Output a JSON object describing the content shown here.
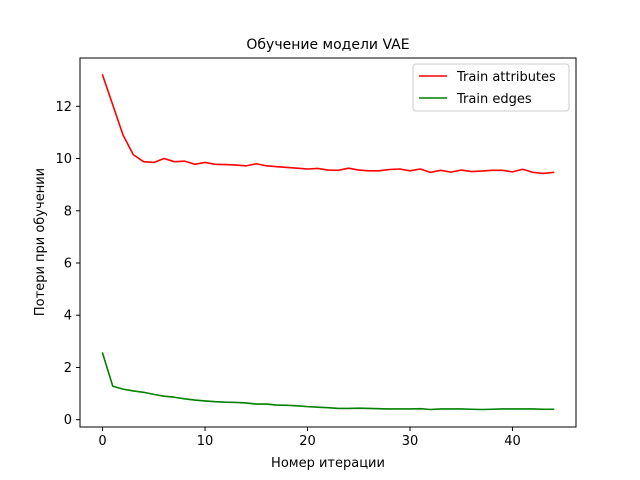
{
  "chart_data": {
    "type": "line",
    "title": "Обучение модели VAE",
    "xlabel": "Номер итерации",
    "ylabel": "Потери при обучении",
    "xlim": [
      -2.2,
      46.2
    ],
    "ylim": [
      -0.28,
      13.85
    ],
    "xticks": [
      0,
      10,
      20,
      30,
      40
    ],
    "yticks": [
      0,
      2,
      4,
      6,
      8,
      10,
      12
    ],
    "grid": false,
    "legend_position": "upper-right",
    "series": [
      {
        "name": "Train attributes",
        "color": "#ff0000",
        "x": [
          0,
          1,
          2,
          3,
          4,
          5,
          6,
          7,
          8,
          9,
          10,
          11,
          12,
          13,
          14,
          15,
          16,
          17,
          18,
          19,
          20,
          21,
          22,
          23,
          24,
          25,
          26,
          27,
          28,
          29,
          30,
          31,
          32,
          33,
          34,
          35,
          36,
          37,
          38,
          39,
          40,
          41,
          42,
          43,
          44
        ],
        "y": [
          13.2,
          12.05,
          10.9,
          10.15,
          9.88,
          9.85,
          10.0,
          9.88,
          9.9,
          9.78,
          9.85,
          9.78,
          9.77,
          9.75,
          9.72,
          9.8,
          9.72,
          9.69,
          9.66,
          9.63,
          9.6,
          9.62,
          9.56,
          9.55,
          9.63,
          9.56,
          9.53,
          9.53,
          9.58,
          9.6,
          9.53,
          9.6,
          9.47,
          9.55,
          9.48,
          9.56,
          9.5,
          9.52,
          9.55,
          9.55,
          9.49,
          9.59,
          9.47,
          9.43,
          9.47
        ]
      },
      {
        "name": "Train edges",
        "color": "#008000",
        "x": [
          0,
          1,
          2,
          3,
          4,
          5,
          6,
          7,
          8,
          9,
          10,
          11,
          12,
          13,
          14,
          15,
          16,
          17,
          18,
          19,
          20,
          21,
          22,
          23,
          24,
          25,
          26,
          27,
          28,
          29,
          30,
          31,
          32,
          33,
          34,
          35,
          36,
          37,
          38,
          39,
          40,
          41,
          42,
          43,
          44
        ],
        "y": [
          2.55,
          1.28,
          1.17,
          1.1,
          1.05,
          0.97,
          0.9,
          0.86,
          0.8,
          0.75,
          0.72,
          0.69,
          0.67,
          0.66,
          0.64,
          0.6,
          0.6,
          0.56,
          0.55,
          0.53,
          0.5,
          0.48,
          0.46,
          0.43,
          0.43,
          0.44,
          0.43,
          0.42,
          0.41,
          0.41,
          0.41,
          0.42,
          0.39,
          0.41,
          0.41,
          0.41,
          0.4,
          0.39,
          0.4,
          0.41,
          0.41,
          0.41,
          0.41,
          0.4,
          0.4
        ]
      }
    ]
  }
}
